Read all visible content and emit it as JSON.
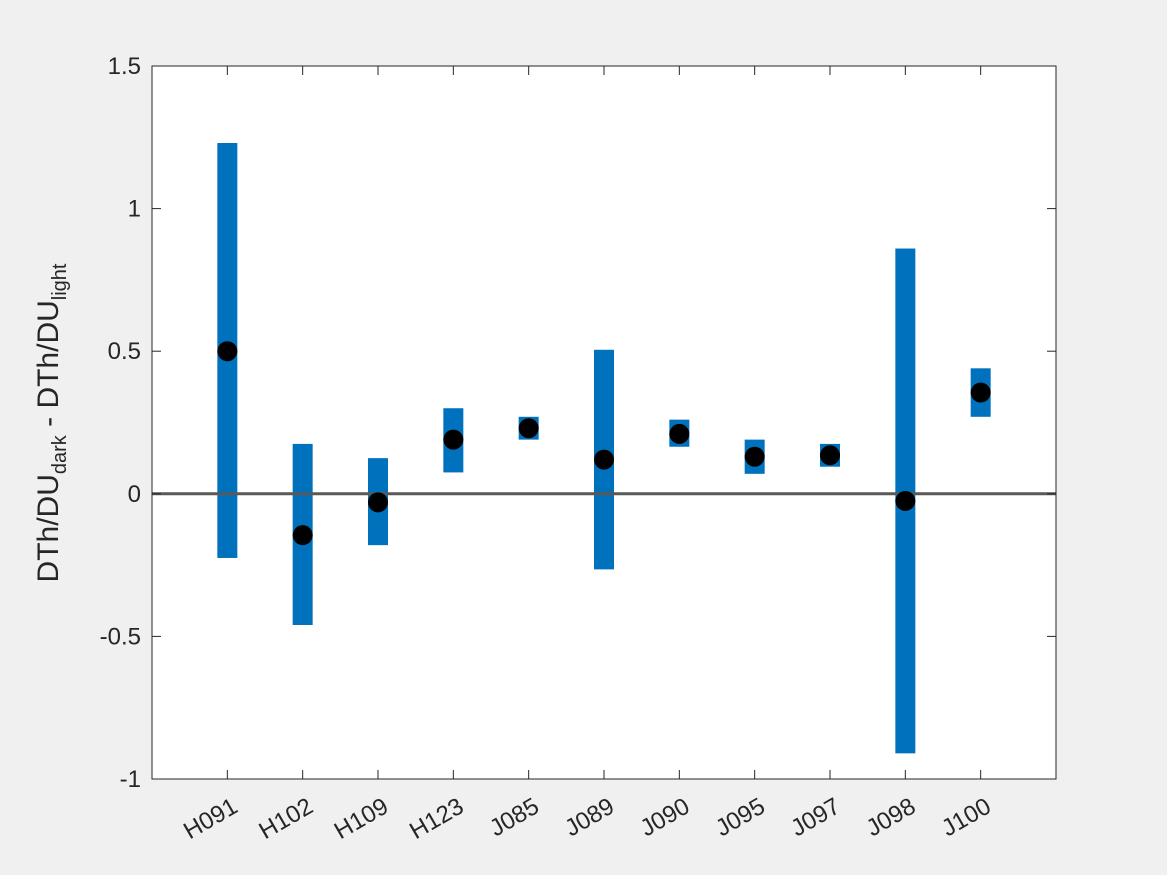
{
  "chart_data": {
    "type": "errorbar",
    "title": "",
    "xlabel": "",
    "ylabel": {
      "main1": "DTh/DU",
      "sub1": "dark",
      "main2": " - DTh/DU",
      "sub2": "light"
    },
    "ylim": [
      -1,
      1.5
    ],
    "yticks": [
      -1,
      -0.5,
      0,
      0.5,
      1,
      1.5
    ],
    "ytick_labels": [
      "-1",
      "-0.5",
      "0",
      "0.5",
      "1",
      "1.5"
    ],
    "categories": [
      "H091",
      "H102",
      "H109",
      "H123",
      "J085",
      "J089",
      "J090",
      "J095",
      "J097",
      "J098",
      "J100"
    ],
    "values": [
      0.5,
      -0.145,
      -0.03,
      0.19,
      0.23,
      0.12,
      0.21,
      0.13,
      0.135,
      -0.025,
      0.355
    ],
    "lower": [
      -0.225,
      -0.46,
      -0.18,
      0.075,
      0.19,
      -0.265,
      0.165,
      0.07,
      0.095,
      -0.91,
      0.27
    ],
    "upper": [
      1.23,
      0.175,
      0.125,
      0.3,
      0.27,
      0.505,
      0.26,
      0.19,
      0.175,
      0.86,
      0.44
    ],
    "reference_line": 0,
    "grid": false,
    "legend": "none",
    "colors": {
      "range": "#0072bd",
      "point": "#000000",
      "reference": "#595959",
      "axes": "#262626"
    }
  }
}
